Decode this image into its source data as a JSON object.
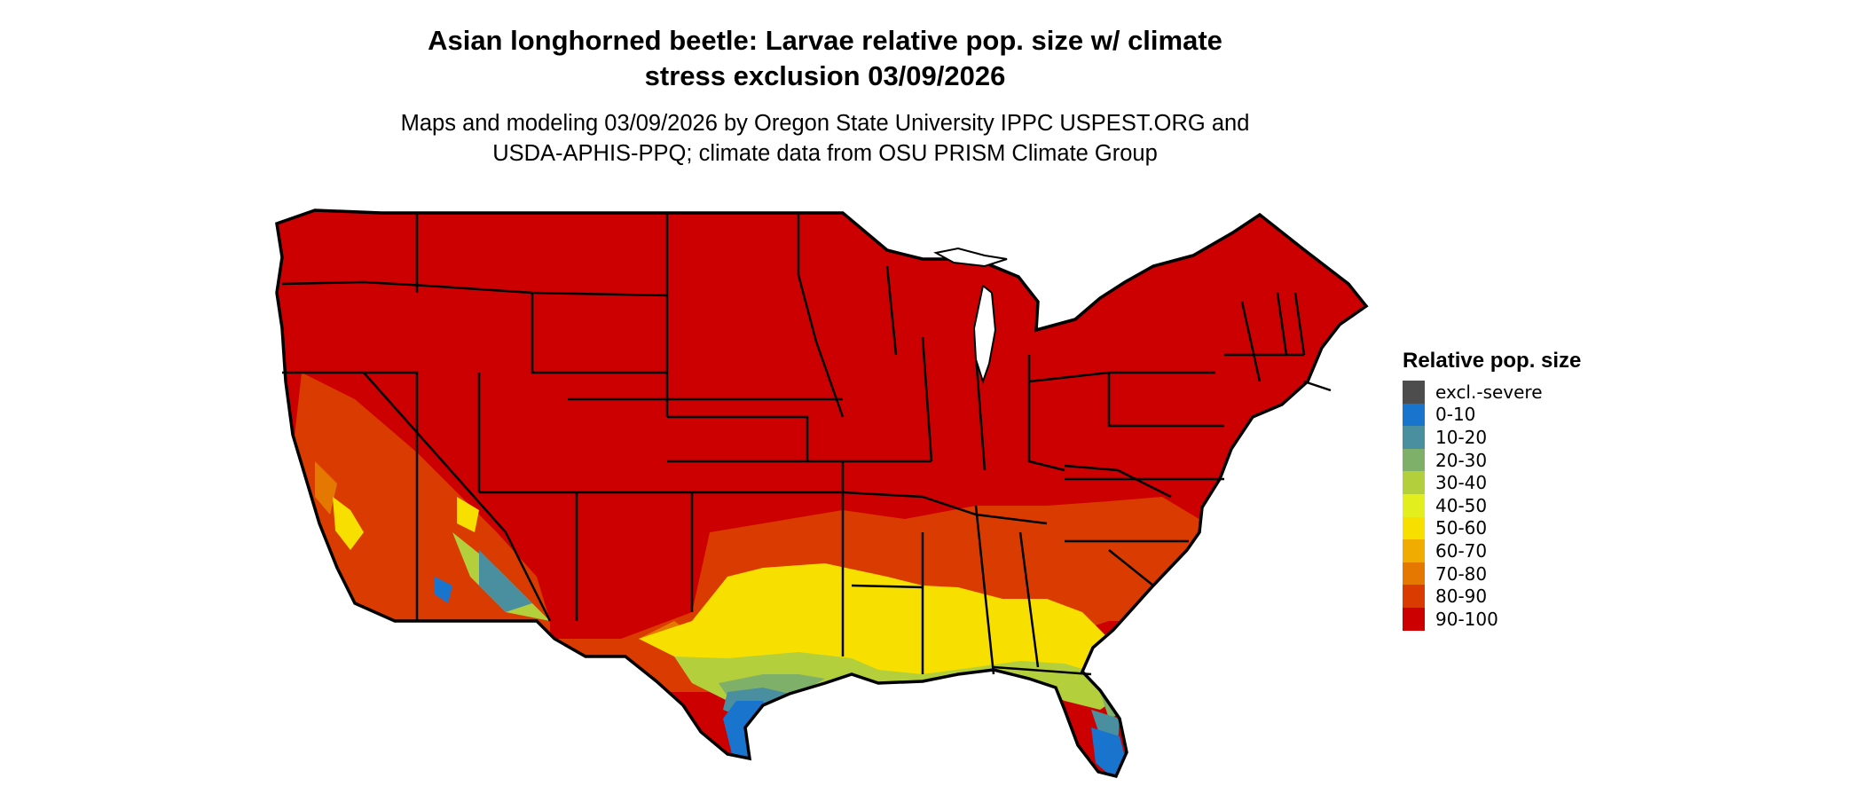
{
  "title_line1": "Asian longhorned beetle: Larvae relative pop. size w/ climate",
  "title_line2": "stress exclusion 03/09/2026",
  "subtitle_line1": "Maps and modeling 03/09/2026 by Oregon State University IPPC USPEST.ORG and",
  "subtitle_line2": "USDA-APHIS-PPQ; climate data from OSU PRISM Climate Group",
  "legend": {
    "title": "Relative pop. size",
    "items": [
      {
        "label": "excl.-severe",
        "color": "#4d4d4d"
      },
      {
        "label": "0-10",
        "color": "#1874cd"
      },
      {
        "label": "10-20",
        "color": "#4a8fa0"
      },
      {
        "label": "20-30",
        "color": "#7fb06a"
      },
      {
        "label": "30-40",
        "color": "#b4cf3c"
      },
      {
        "label": "40-50",
        "color": "#e3ee1e"
      },
      {
        "label": "50-60",
        "color": "#f7e000"
      },
      {
        "label": "60-70",
        "color": "#f0ad00"
      },
      {
        "label": "70-80",
        "color": "#e57800"
      },
      {
        "label": "80-90",
        "color": "#d93b00"
      },
      {
        "label": "90-100",
        "color": "#cc0000"
      }
    ]
  },
  "map": {
    "region": "contiguous-us",
    "outline_color": "#000000",
    "colors": {
      "c90": "#cc0000",
      "c80": "#d93b00",
      "c70": "#e57800",
      "c50": "#f7e000",
      "c30": "#b4cf3c",
      "c20": "#7fb06a",
      "c10": "#4a8fa0",
      "c0": "#1874cd"
    }
  }
}
